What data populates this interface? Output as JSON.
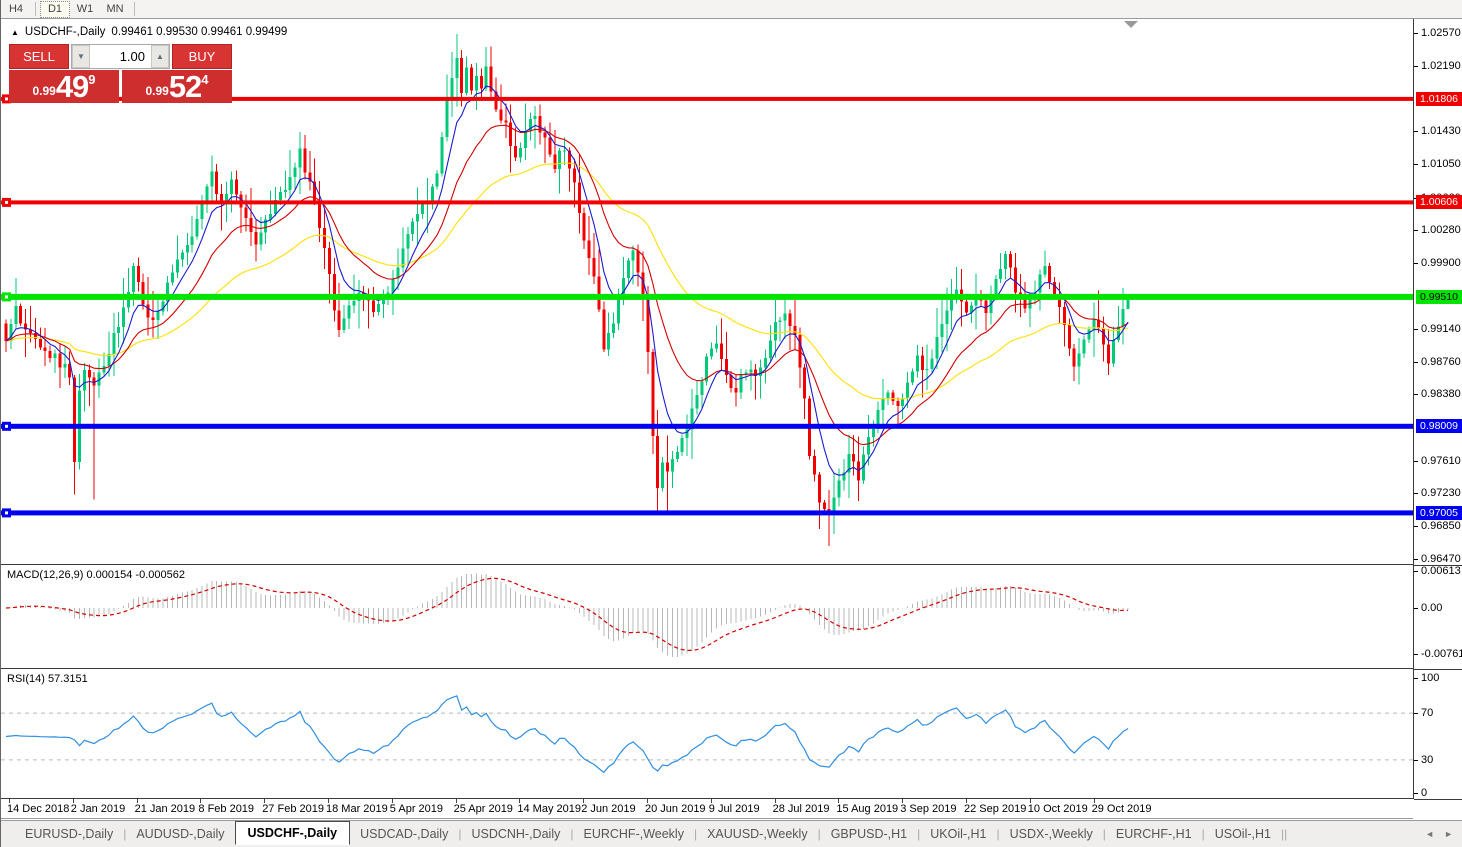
{
  "toolbar": {
    "timeframes": [
      {
        "label": "H4",
        "active": false
      },
      {
        "label": "D1",
        "active": true
      },
      {
        "label": "W1",
        "active": false
      },
      {
        "label": "MN",
        "active": false
      }
    ]
  },
  "chart": {
    "collapse_arrow": "▲",
    "symbol": "USDCHF-,Daily",
    "ohlc": "0.99461 0.99530 0.99461 0.99499"
  },
  "trade": {
    "sell_label": "SELL",
    "buy_label": "BUY",
    "volume": "1.00",
    "down_arrow": "▼",
    "up_arrow": "▲",
    "sell_small": "0.99",
    "sell_big": "49",
    "sell_sup": "9",
    "buy_small": "0.99",
    "buy_big": "52",
    "buy_sup": "4"
  },
  "price_axis": {
    "ticks": [
      {
        "label": "1.02570",
        "price": 1.0257
      },
      {
        "label": "1.02190",
        "price": 1.0219
      },
      {
        "label": "1.01430",
        "price": 1.0143
      },
      {
        "label": "1.01050",
        "price": 1.0105
      },
      {
        "label": "1.00660",
        "price": 1.0066
      },
      {
        "label": "1.00280",
        "price": 1.0028
      },
      {
        "label": "0.99900",
        "price": 0.999
      },
      {
        "label": "0.99140",
        "price": 0.9914
      },
      {
        "label": "0.98760",
        "price": 0.9876
      },
      {
        "label": "0.98380",
        "price": 0.9838
      },
      {
        "label": "0.97610",
        "price": 0.9761
      },
      {
        "label": "0.97230",
        "price": 0.9723
      },
      {
        "label": "0.96850",
        "price": 0.9685
      },
      {
        "label": "0.96470",
        "price": 0.9647
      }
    ],
    "badges": [
      {
        "label": "1.01806",
        "price": 1.01806,
        "bg": "#f00000",
        "fg": "#ffffff"
      },
      {
        "label": "1.00606",
        "price": 1.00606,
        "bg": "#f00000",
        "fg": "#ffffff"
      },
      {
        "label": "0.99510",
        "price": 0.9951,
        "bg": "#00e400",
        "fg": "#000000"
      },
      {
        "label": "0.98009",
        "price": 0.98009,
        "bg": "#0000f0",
        "fg": "#ffffff"
      },
      {
        "label": "0.97005",
        "price": 0.97005,
        "bg": "#0000f0",
        "fg": "#ffffff"
      }
    ]
  },
  "hlines": [
    {
      "price": 1.01806,
      "color": "#f00000",
      "thickness": 4
    },
    {
      "price": 1.00606,
      "color": "#f00000",
      "thickness": 4
    },
    {
      "price": 0.9951,
      "color": "#00e400",
      "thickness": 6
    },
    {
      "price": 0.98009,
      "color": "#0000f0",
      "thickness": 5
    },
    {
      "price": 0.97005,
      "color": "#0000f0",
      "thickness": 5
    }
  ],
  "macd": {
    "title": "MACD(12,26,9)",
    "values": "0.000154 -0.000562",
    "axis": [
      {
        "label": "0.00613",
        "value": 0.00613
      },
      {
        "label": "0.00",
        "value": 0
      },
      {
        "label": "-0.007612",
        "value": -0.007612
      }
    ]
  },
  "rsi": {
    "title": "RSI(14)",
    "value": "57.3151",
    "axis": [
      {
        "label": "100",
        "value": 100
      },
      {
        "label": "70",
        "value": 70
      },
      {
        "label": "30",
        "value": 30
      },
      {
        "label": "0",
        "value": 0
      }
    ],
    "levels": [
      70,
      30
    ]
  },
  "date_axis": {
    "labels": [
      "14 Dec 2018",
      "2 Jan 2019",
      "21 Jan 2019",
      "8 Feb 2019",
      "27 Feb 2019",
      "18 Mar 2019",
      "5 Apr 2019",
      "25 Apr 2019",
      "14 May 2019",
      "2 Jun 2019",
      "20 Jun 2019",
      "9 Jul 2019",
      "28 Jul 2019",
      "15 Aug 2019",
      "3 Sep 2019",
      "22 Sep 2019",
      "10 Oct 2019",
      "29 Oct 2019"
    ]
  },
  "tabs": {
    "items": [
      {
        "label": "EURUSD-,Daily",
        "active": false
      },
      {
        "label": "AUDUSD-,Daily",
        "active": false
      },
      {
        "label": "USDCHF-,Daily",
        "active": true
      },
      {
        "label": "USDCAD-,Daily",
        "active": false
      },
      {
        "label": "USDCNH-,Daily",
        "active": false
      },
      {
        "label": "EURCHF-,Weekly",
        "active": false
      },
      {
        "label": "XAUUSD-,Weekly",
        "active": false
      },
      {
        "label": "GBPUSD-,H1",
        "active": false
      },
      {
        "label": "UKOil-,H1",
        "active": false
      },
      {
        "label": "USDX-,Weekly",
        "active": false
      },
      {
        "label": "EURCHF-,H1",
        "active": false
      },
      {
        "label": "USOil-,H1",
        "active": false
      }
    ],
    "scroll_left": "◄",
    "scroll_right": "►"
  },
  "colors": {
    "bull": "#00c97a",
    "bear": "#f20000",
    "ma_fast": "#1b1bd0",
    "ma_mid": "#d40000",
    "ma_slow": "#ffe100",
    "macd_hist": "#b8b8b8",
    "macd_signal": "#d40000",
    "rsi_line": "#2f8fe0",
    "rsi_grid": "#bbbbbb",
    "shift_triangle": "#999999"
  },
  "chart_data": {
    "type": "candlestick",
    "symbol": "USDCHF",
    "period": "Daily",
    "price_range": [
      0.9647,
      1.0257
    ],
    "ma_periods": {
      "fast": 7,
      "mid": 18,
      "slow": 45
    },
    "indicators": [
      "MACD(12,26,9)",
      "RSI(14)"
    ],
    "last_close": 0.99499,
    "close_keyframes": [
      [
        0,
        0.99
      ],
      [
        2,
        0.9938
      ],
      [
        4,
        0.991
      ],
      [
        6,
        0.9902
      ],
      [
        8,
        0.9888
      ],
      [
        10,
        0.988
      ],
      [
        12,
        0.9868
      ],
      [
        13,
        0.9852
      ],
      [
        14,
        0.9762
      ],
      [
        15,
        0.9838
      ],
      [
        16,
        0.9868
      ],
      [
        17,
        0.9852
      ],
      [
        18,
        0.9845
      ],
      [
        19,
        0.9858
      ],
      [
        20,
        0.9872
      ],
      [
        22,
        0.9905
      ],
      [
        24,
        0.9935
      ],
      [
        26,
        0.9985
      ],
      [
        27,
        0.9968
      ],
      [
        28,
        0.9942
      ],
      [
        30,
        0.9922
      ],
      [
        32,
        0.9948
      ],
      [
        34,
        0.9978
      ],
      [
        36,
        1.0005
      ],
      [
        38,
        1.0022
      ],
      [
        40,
        1.006
      ],
      [
        42,
        1.0096
      ],
      [
        43,
        1.0072
      ],
      [
        44,
        1.0058
      ],
      [
        46,
        1.0086
      ],
      [
        48,
        1.0052
      ],
      [
        50,
        1.0022
      ],
      [
        51,
        1.0012
      ],
      [
        52,
        1.0028
      ],
      [
        54,
        1.0048
      ],
      [
        56,
        1.0068
      ],
      [
        58,
        1.0088
      ],
      [
        60,
        1.0118
      ],
      [
        61,
        1.0098
      ],
      [
        62,
        1.0088
      ],
      [
        63,
        1.0058
      ],
      [
        64,
        1.0032
      ],
      [
        65,
        1.0006
      ],
      [
        66,
        0.9982
      ],
      [
        67,
        0.994
      ],
      [
        68,
        0.9908
      ],
      [
        69,
        0.9925
      ],
      [
        70,
        0.9942
      ],
      [
        72,
        0.9958
      ],
      [
        74,
        0.9948
      ],
      [
        75,
        0.9936
      ],
      [
        76,
        0.9944
      ],
      [
        78,
        0.9952
      ],
      [
        80,
        0.999
      ],
      [
        82,
        1.0022
      ],
      [
        84,
        1.0045
      ],
      [
        86,
        1.0062
      ],
      [
        88,
        1.0098
      ],
      [
        89,
        1.0135
      ],
      [
        90,
        1.018
      ],
      [
        91,
        1.0205
      ],
      [
        92,
        1.0232
      ],
      [
        93,
        1.0192
      ],
      [
        94,
        1.0215
      ],
      [
        95,
        1.0185
      ],
      [
        96,
        1.0202
      ],
      [
        97,
        1.0192
      ],
      [
        98,
        1.0214
      ],
      [
        99,
        1.0192
      ],
      [
        100,
        1.0172
      ],
      [
        101,
        1.0152
      ],
      [
        102,
        1.0148
      ],
      [
        103,
        1.0125
      ],
      [
        104,
        1.0108
      ],
      [
        105,
        1.0128
      ],
      [
        106,
        1.0142
      ],
      [
        107,
        1.0152
      ],
      [
        108,
        1.0158
      ],
      [
        109,
        1.0142
      ],
      [
        110,
        1.0132
      ],
      [
        111,
        1.0112
      ],
      [
        112,
        1.0098
      ],
      [
        113,
        1.0115
      ],
      [
        114,
        1.0122
      ],
      [
        115,
        1.0098
      ],
      [
        116,
        1.0082
      ],
      [
        117,
        1.0052
      ],
      [
        118,
        1.0022
      ],
      [
        119,
        0.9998
      ],
      [
        120,
        0.9978
      ],
      [
        121,
        0.9932
      ],
      [
        122,
        0.9892
      ],
      [
        123,
        0.9905
      ],
      [
        124,
        0.9922
      ],
      [
        125,
        0.9948
      ],
      [
        126,
        0.9978
      ],
      [
        127,
        0.9992
      ],
      [
        128,
        1.0005
      ],
      [
        129,
        0.9978
      ],
      [
        130,
        0.9948
      ],
      [
        131,
        0.9888
      ],
      [
        132,
        0.9792
      ],
      [
        133,
        0.9728
      ],
      [
        134,
        0.9762
      ],
      [
        135,
        0.9748
      ],
      [
        136,
        0.9758
      ],
      [
        137,
        0.9772
      ],
      [
        138,
        0.9788
      ],
      [
        139,
        0.9802
      ],
      [
        140,
        0.9818
      ],
      [
        141,
        0.9835
      ],
      [
        142,
        0.9858
      ],
      [
        143,
        0.9878
      ],
      [
        144,
        0.9892
      ],
      [
        145,
        0.9902
      ],
      [
        146,
        0.9882
      ],
      [
        147,
        0.9862
      ],
      [
        148,
        0.9848
      ],
      [
        149,
        0.9842
      ],
      [
        150,
        0.9858
      ],
      [
        151,
        0.9868
      ],
      [
        152,
        0.9862
      ],
      [
        153,
        0.9855
      ],
      [
        154,
        0.9868
      ],
      [
        155,
        0.9882
      ],
      [
        156,
        0.9905
      ],
      [
        157,
        0.9918
      ],
      [
        158,
        0.9928
      ],
      [
        159,
        0.9935
      ],
      [
        160,
        0.9922
      ],
      [
        161,
        0.9905
      ],
      [
        162,
        0.9868
      ],
      [
        163,
        0.9832
      ],
      [
        164,
        0.9772
      ],
      [
        165,
        0.9742
      ],
      [
        166,
        0.9718
      ],
      [
        167,
        0.9708
      ],
      [
        168,
        0.9702
      ],
      [
        169,
        0.9718
      ],
      [
        170,
        0.9735
      ],
      [
        171,
        0.9752
      ],
      [
        172,
        0.9768
      ],
      [
        173,
        0.9755
      ],
      [
        174,
        0.9742
      ],
      [
        175,
        0.9765
      ],
      [
        176,
        0.9788
      ],
      [
        177,
        0.9802
      ],
      [
        178,
        0.9815
      ],
      [
        179,
        0.9828
      ],
      [
        180,
        0.984
      ],
      [
        181,
        0.9832
      ],
      [
        182,
        0.9822
      ],
      [
        183,
        0.9835
      ],
      [
        184,
        0.985
      ],
      [
        185,
        0.9865
      ],
      [
        186,
        0.9878
      ],
      [
        187,
        0.987
      ],
      [
        188,
        0.9865
      ],
      [
        189,
        0.9885
      ],
      [
        190,
        0.9905
      ],
      [
        191,
        0.9922
      ],
      [
        192,
        0.9938
      ],
      [
        193,
        0.995
      ],
      [
        194,
        0.9958
      ],
      [
        195,
        0.9945
      ],
      [
        196,
        0.9935
      ],
      [
        197,
        0.9945
      ],
      [
        198,
        0.9955
      ],
      [
        199,
        0.9942
      ],
      [
        200,
        0.993
      ],
      [
        201,
        0.995
      ],
      [
        202,
        0.9968
      ],
      [
        203,
        0.9988
      ],
      [
        204,
        1.0
      ],
      [
        205,
        0.9982
      ],
      [
        206,
        0.996
      ],
      [
        207,
        0.9945
      ],
      [
        208,
        0.9935
      ],
      [
        209,
        0.9948
      ],
      [
        210,
        0.996
      ],
      [
        211,
        0.9972
      ],
      [
        212,
        0.9985
      ],
      [
        213,
        0.9968
      ],
      [
        214,
        0.995
      ],
      [
        215,
        0.9935
      ],
      [
        216,
        0.992
      ],
      [
        217,
        0.9895
      ],
      [
        218,
        0.9872
      ],
      [
        219,
        0.9885
      ],
      [
        220,
        0.99
      ],
      [
        221,
        0.9915
      ],
      [
        222,
        0.993
      ],
      [
        223,
        0.9912
      ],
      [
        224,
        0.9892
      ],
      [
        225,
        0.9872
      ],
      [
        226,
        0.9898
      ],
      [
        227,
        0.992
      ],
      [
        228,
        0.9942
      ],
      [
        229,
        0.99499
      ]
    ],
    "wick_overrides": {
      "14": {
        "low": 0.9722
      },
      "18": {
        "low": 0.9716
      },
      "92": {
        "high": 1.0256
      },
      "98": {
        "high": 1.0241
      },
      "133": {
        "low": 0.9702
      },
      "135": {
        "low": 0.97
      },
      "168": {
        "low": 0.9662
      },
      "229": {
        "high": 0.9953,
        "low": 0.99461
      }
    }
  }
}
